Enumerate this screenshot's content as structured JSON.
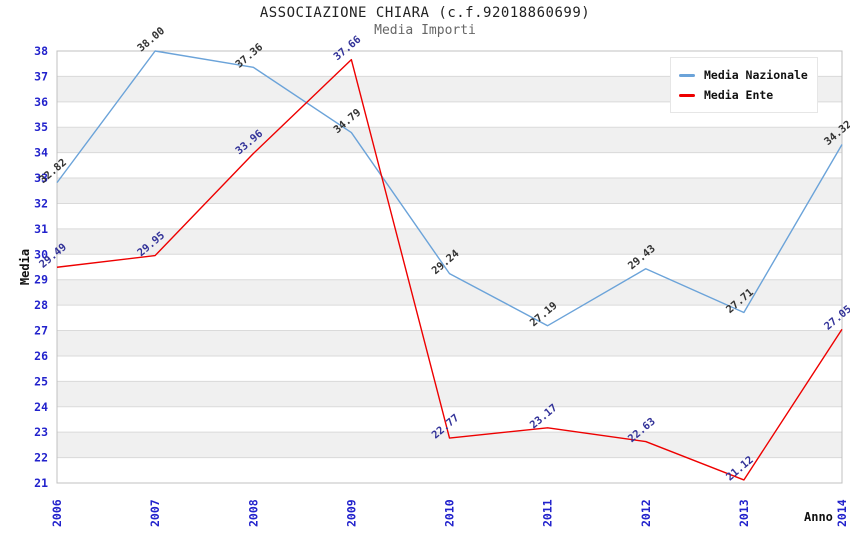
{
  "chart_data": {
    "type": "line",
    "title": "ASSOCIAZIONE CHIARA (c.f.92018860699)",
    "subtitle": "Media Importi",
    "xlabel": "Anno",
    "ylabel": "Media",
    "categories": [
      "2006",
      "2007",
      "2008",
      "2009",
      "2010",
      "2011",
      "2012",
      "2013",
      "2014"
    ],
    "ylim": [
      21,
      38
    ],
    "y_ticks": [
      21,
      22,
      23,
      24,
      25,
      26,
      27,
      28,
      29,
      30,
      31,
      32,
      33,
      34,
      35,
      36,
      37,
      38
    ],
    "grid": "horizontal-stripes",
    "legend_position": "top-right",
    "series": [
      {
        "name": "Media Nazionale",
        "color": "#6ba3d9",
        "label_color": "#333333",
        "values": [
          32.82,
          38.0,
          37.36,
          34.79,
          29.24,
          27.19,
          29.43,
          27.71,
          34.32
        ]
      },
      {
        "name": "Media Ente",
        "color": "#ee0000",
        "label_color": "#333399",
        "values": [
          29.49,
          29.95,
          33.96,
          37.66,
          22.77,
          23.17,
          22.63,
          21.12,
          27.05
        ]
      }
    ],
    "colors": {
      "tick_label": "#2222cc",
      "stripe": "#f0f0f0",
      "gridline": "#dadada",
      "plot_border": "#c0c0c0",
      "title": "#222222",
      "subtitle": "#666666"
    }
  }
}
